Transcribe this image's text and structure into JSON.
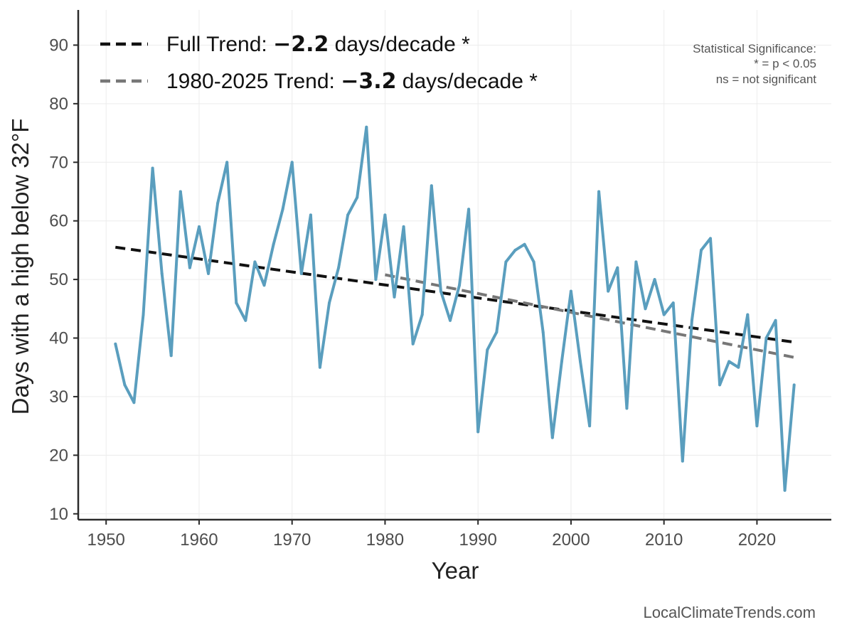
{
  "chart_data": {
    "type": "line",
    "xlabel": "Year",
    "ylabel": "Days with a high below 32°F",
    "xlim": [
      1947,
      2028
    ],
    "ylim": [
      9,
      96
    ],
    "x_ticks": [
      1950,
      1960,
      1970,
      1980,
      1990,
      2000,
      2010,
      2020
    ],
    "y_ticks": [
      10,
      20,
      30,
      40,
      50,
      60,
      70,
      80,
      90
    ],
    "grid": true,
    "legend_position": "top-left",
    "series": [
      {
        "color": "#5a9ebe",
        "x": [
          1951,
          1952,
          1953,
          1954,
          1955,
          1956,
          1957,
          1958,
          1959,
          1960,
          1961,
          1962,
          1963,
          1964,
          1965,
          1966,
          1967,
          1968,
          1969,
          1970,
          1971,
          1972,
          1973,
          1974,
          1975,
          1976,
          1977,
          1978,
          1979,
          1980,
          1981,
          1982,
          1983,
          1984,
          1985,
          1986,
          1987,
          1988,
          1989,
          1990,
          1991,
          1992,
          1993,
          1994,
          1995,
          1996,
          1997,
          1998,
          1999,
          2000,
          2001,
          2002,
          2003,
          2004,
          2005,
          2006,
          2007,
          2008,
          2009,
          2010,
          2011,
          2012,
          2013,
          2014,
          2015,
          2016,
          2017,
          2018,
          2019,
          2020,
          2021,
          2022,
          2023,
          2024
        ],
        "y": [
          39,
          32,
          29,
          44,
          69,
          51,
          37,
          65,
          52,
          59,
          51,
          63,
          70,
          46,
          43,
          53,
          49,
          56,
          62,
          70,
          51,
          61,
          35,
          46,
          52,
          61,
          64,
          76,
          50,
          61,
          47,
          59,
          39,
          44,
          66,
          48,
          43,
          49,
          62,
          24,
          38,
          41,
          53,
          55,
          56,
          53,
          41,
          23,
          36,
          48,
          36,
          25,
          65,
          48,
          52,
          28,
          53,
          45,
          50,
          44,
          46,
          19,
          43,
          55,
          57,
          32,
          36,
          35,
          44,
          25,
          40,
          43,
          14,
          32
        ]
      }
    ],
    "trends": [
      {
        "label_prefix": "Full Trend: ",
        "label_value": "−2.2",
        "label_suffix": " days/decade *",
        "color": "#111111",
        "x": [
          1951,
          2024
        ],
        "y": [
          55.5,
          39.3
        ]
      },
      {
        "label_prefix": "1980-2025 Trend: ",
        "label_value": "−3.2",
        "label_suffix": " days/decade *",
        "color": "#777777",
        "x": [
          1980,
          2024
        ],
        "y": [
          50.8,
          36.7
        ]
      }
    ],
    "significance_note": [
      "Statistical Significance:",
      "* = p < 0.05",
      "ns = not significant"
    ],
    "source": "LocalClimateTrends.com"
  }
}
